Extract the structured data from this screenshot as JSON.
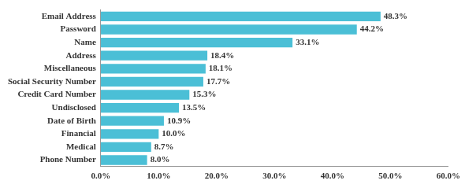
{
  "chart_data": {
    "type": "bar",
    "orientation": "horizontal",
    "categories": [
      "Email Address",
      "Password",
      "Name",
      "Address",
      "Miscellaneous",
      "Social Security Number",
      "Credit Card Number",
      "Undisclosed",
      "Date of Birth",
      "Financial",
      "Medical",
      "Phone Number"
    ],
    "values": [
      48.3,
      44.2,
      33.1,
      18.4,
      18.1,
      17.7,
      15.3,
      13.5,
      10.9,
      10.0,
      8.7,
      8.0
    ],
    "value_labels": [
      "48.3%",
      "44.2%",
      "33.1%",
      "18.4%",
      "18.1%",
      "17.7%",
      "15.3%",
      "13.5%",
      "10.9%",
      "10.0%",
      "8.7%",
      "8.0%"
    ],
    "color": "#4bbfd6",
    "xlim": [
      0,
      60
    ],
    "xticks": [
      {
        "value": 0,
        "label": "0.0%"
      },
      {
        "value": 10,
        "label": "10.0%"
      },
      {
        "value": 20,
        "label": "20.0%"
      },
      {
        "value": 30,
        "label": "30.0%"
      },
      {
        "value": 40,
        "label": "40.0%"
      },
      {
        "value": 50,
        "label": "50.0%"
      },
      {
        "value": 60,
        "label": "60.0%"
      }
    ],
    "grid": false,
    "data_labels": true
  }
}
